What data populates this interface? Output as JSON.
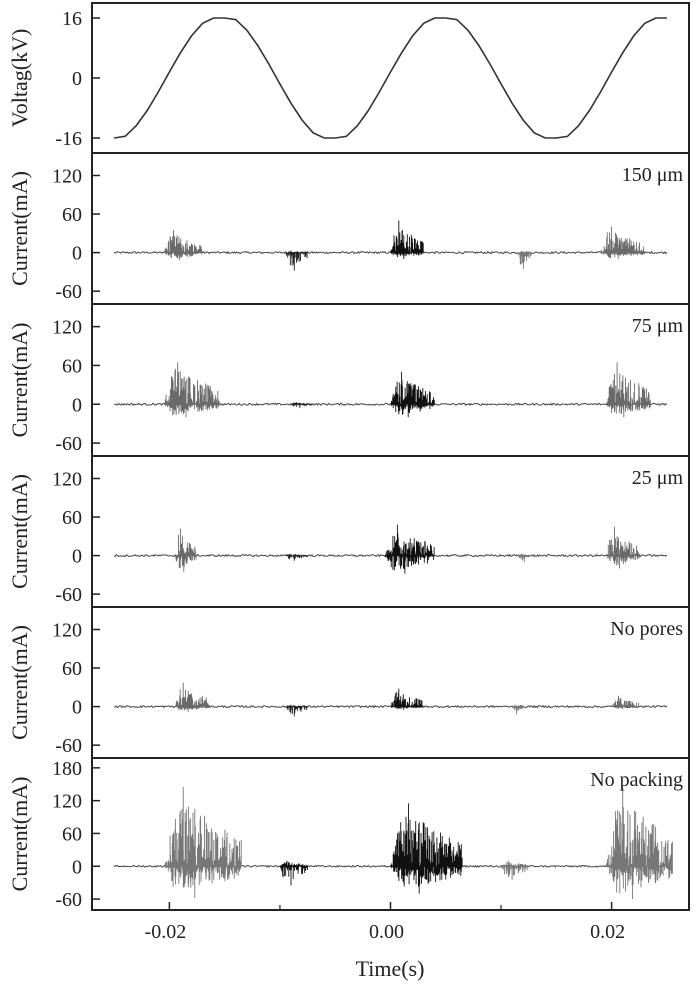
{
  "chart_data": {
    "type": "line",
    "xlabel": "Time(s)",
    "xlim": [
      -0.027,
      0.027
    ],
    "x_ticks": [
      {
        "value": -0.02,
        "label": "-0.02"
      },
      {
        "value": 0.0,
        "label": "0.00"
      },
      {
        "value": 0.02,
        "label": "0.02"
      }
    ],
    "x_minor_ticks": [
      -0.01,
      0.01
    ],
    "panels": [
      {
        "label": "",
        "ylabel": "Voltag(kV)",
        "ylim": [
          -20,
          20
        ],
        "y_ticks": [
          {
            "value": 16,
            "label": "16"
          },
          {
            "value": 0,
            "label": "0"
          },
          {
            "value": -16,
            "label": "-16"
          }
        ],
        "voltage_ms": [
          -25,
          -24,
          -23,
          -22,
          -21,
          -20,
          -19,
          -18,
          -17,
          -16,
          -15,
          -14,
          -13,
          -12,
          -11,
          -10,
          -9,
          -8,
          -7,
          -6,
          -5,
          -4,
          -3,
          -2,
          -1,
          0,
          1,
          2,
          3,
          4,
          5,
          6,
          7,
          8,
          9,
          10,
          11,
          12,
          13,
          14,
          15,
          16,
          17,
          18,
          19,
          20,
          21,
          22,
          23,
          24,
          25
        ],
        "voltage_kV": [
          -16,
          -15.55,
          -12.72,
          -8.63,
          -3.7,
          1.6,
          6.73,
          11.22,
          14.6,
          16,
          16,
          15.57,
          12.74,
          8.63,
          3.7,
          -1.6,
          -6.73,
          -11.22,
          -14.6,
          -16,
          -16,
          -15.57,
          -12.74,
          -8.63,
          -3.7,
          1.6,
          6.73,
          11.22,
          14.6,
          16,
          16,
          15.57,
          12.74,
          8.63,
          3.7,
          -1.6,
          -6.73,
          -11.22,
          -14.6,
          -16,
          -16,
          -15.57,
          -12.74,
          -8.63,
          -3.7,
          1.6,
          6.73,
          11.22,
          14.6,
          16,
          16
        ]
      },
      {
        "label": "150 μm",
        "ylabel": "Current(mA)",
        "ylim": [
          -80,
          155
        ],
        "y_ticks": [
          {
            "value": 120,
            "label": "120"
          },
          {
            "value": 60,
            "label": "60"
          },
          {
            "value": 0,
            "label": "0"
          },
          {
            "value": -60,
            "label": "-60"
          }
        ],
        "bursts": [
          {
            "t0": -0.0205,
            "t1": -0.017,
            "max": 35,
            "min": -12,
            "color": "#6a6a6a"
          },
          {
            "t0": -0.0095,
            "t1": -0.0075,
            "max": 3,
            "min": -28,
            "color": "#222222"
          },
          {
            "t0": 0.0,
            "t1": 0.003,
            "max": 50,
            "min": -10,
            "color": "#111111"
          },
          {
            "t0": 0.0115,
            "t1": 0.0128,
            "max": 3,
            "min": -25,
            "color": "#777777"
          },
          {
            "t0": 0.019,
            "t1": 0.023,
            "max": 40,
            "min": -10,
            "color": "#6a6a6a"
          }
        ]
      },
      {
        "label": "75 μm",
        "ylabel": "Current(mA)",
        "ylim": [
          -80,
          155
        ],
        "y_ticks": [
          {
            "value": 120,
            "label": "120"
          },
          {
            "value": 60,
            "label": "60"
          },
          {
            "value": 0,
            "label": "0"
          },
          {
            "value": -60,
            "label": "-60"
          }
        ],
        "bursts": [
          {
            "t0": -0.0205,
            "t1": -0.0155,
            "max": 65,
            "min": -20,
            "color": "#6a6a6a"
          },
          {
            "t0": -0.009,
            "t1": -0.007,
            "max": 3,
            "min": -6,
            "color": "#222222"
          },
          {
            "t0": 0.0,
            "t1": 0.004,
            "max": 50,
            "min": -20,
            "color": "#111111"
          },
          {
            "t0": 0.0195,
            "t1": 0.0235,
            "max": 65,
            "min": -20,
            "color": "#6a6a6a"
          }
        ]
      },
      {
        "label": "25 μm",
        "ylabel": "Current(mA)",
        "ylim": [
          -80,
          155
        ],
        "y_ticks": [
          {
            "value": 120,
            "label": "120"
          },
          {
            "value": 60,
            "label": "60"
          },
          {
            "value": 0,
            "label": "0"
          },
          {
            "value": -60,
            "label": "-60"
          }
        ],
        "bursts": [
          {
            "t0": -0.0195,
            "t1": -0.0175,
            "max": 42,
            "min": -25,
            "color": "#6a6a6a"
          },
          {
            "t0": -0.0095,
            "t1": -0.0075,
            "max": 3,
            "min": -8,
            "color": "#222222"
          },
          {
            "t0": -0.0005,
            "t1": 0.004,
            "max": 48,
            "min": -28,
            "color": "#111111"
          },
          {
            "t0": 0.0115,
            "t1": 0.013,
            "max": 3,
            "min": -10,
            "color": "#777777"
          },
          {
            "t0": 0.0195,
            "t1": 0.0225,
            "max": 45,
            "min": -20,
            "color": "#6a6a6a"
          }
        ]
      },
      {
        "label": "No pores",
        "ylabel": "Current(mA)",
        "ylim": [
          -80,
          155
        ],
        "y_ticks": [
          {
            "value": 120,
            "label": "120"
          },
          {
            "value": 60,
            "label": "60"
          },
          {
            "value": 0,
            "label": "0"
          },
          {
            "value": -60,
            "label": "-60"
          }
        ],
        "bursts": [
          {
            "t0": -0.0195,
            "t1": -0.0165,
            "max": 37,
            "min": -8,
            "color": "#6a6a6a"
          },
          {
            "t0": -0.0095,
            "t1": -0.0075,
            "max": 3,
            "min": -15,
            "color": "#222222"
          },
          {
            "t0": 0.0,
            "t1": 0.003,
            "max": 28,
            "min": -5,
            "color": "#111111"
          },
          {
            "t0": 0.011,
            "t1": 0.012,
            "max": 3,
            "min": -12,
            "color": "#777777"
          },
          {
            "t0": 0.02,
            "t1": 0.0225,
            "max": 17,
            "min": -4,
            "color": "#6a6a6a"
          }
        ]
      },
      {
        "label": "No packing",
        "ylabel": "Current(mA)",
        "ylim": [
          -80,
          198
        ],
        "y_ticks": [
          {
            "value": 180,
            "label": "180"
          },
          {
            "value": 120,
            "label": "120"
          },
          {
            "value": 60,
            "label": "60"
          },
          {
            "value": 0,
            "label": "0"
          },
          {
            "value": -60,
            "label": "-60"
          }
        ],
        "bursts": [
          {
            "t0": -0.0205,
            "t1": -0.0135,
            "max": 145,
            "min": -58,
            "color": "#777777"
          },
          {
            "t0": -0.01,
            "t1": -0.0075,
            "max": 10,
            "min": -35,
            "color": "#111111"
          },
          {
            "t0": 0.0,
            "t1": 0.0065,
            "max": 115,
            "min": -50,
            "color": "#111111"
          },
          {
            "t0": 0.01,
            "t1": 0.0125,
            "max": 10,
            "min": -25,
            "color": "#777777"
          },
          {
            "t0": 0.0195,
            "t1": 0.0255,
            "max": 145,
            "min": -60,
            "color": "#777777"
          }
        ]
      }
    ]
  }
}
